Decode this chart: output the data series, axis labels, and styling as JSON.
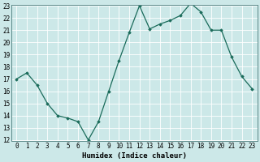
{
  "x": [
    0,
    1,
    2,
    3,
    4,
    5,
    6,
    7,
    8,
    9,
    10,
    11,
    12,
    13,
    14,
    15,
    16,
    17,
    18,
    19,
    20,
    21,
    22,
    23
  ],
  "y": [
    17.0,
    17.5,
    16.5,
    15.0,
    14.0,
    13.8,
    13.5,
    12.0,
    13.5,
    16.0,
    18.5,
    20.8,
    23.0,
    21.1,
    21.5,
    21.8,
    22.2,
    23.2,
    22.5,
    21.0,
    21.0,
    18.8,
    17.2,
    16.2
  ],
  "xlabel": "Humidex (Indice chaleur)",
  "ylim": [
    12,
    23
  ],
  "xlim": [
    -0.5,
    23.5
  ],
  "yticks": [
    12,
    13,
    14,
    15,
    16,
    17,
    18,
    19,
    20,
    21,
    22,
    23
  ],
  "xticks": [
    0,
    1,
    2,
    3,
    4,
    5,
    6,
    7,
    8,
    9,
    10,
    11,
    12,
    13,
    14,
    15,
    16,
    17,
    18,
    19,
    20,
    21,
    22,
    23
  ],
  "line_color": "#1a6b5a",
  "marker": "D",
  "marker_size": 1.8,
  "bg_color": "#cce8e8",
  "grid_color": "#ffffff",
  "grid_minor_color": "#dde8e8",
  "xlabel_fontsize": 6.5,
  "tick_fontsize": 5.5,
  "line_width": 0.9
}
